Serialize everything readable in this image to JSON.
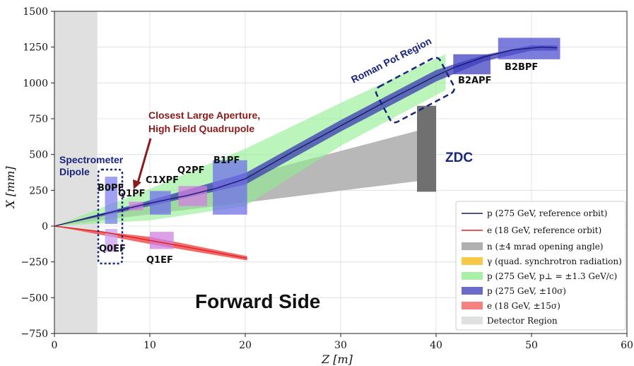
{
  "chart_data": {
    "type": "line",
    "xlabel": "Z [m]",
    "ylabel": "X [mm]",
    "xlim": [
      0,
      60
    ],
    "ylim": [
      -750,
      1500
    ],
    "x_ticks": [
      "0",
      "10",
      "20",
      "30",
      "40",
      "50",
      "60"
    ],
    "y_ticks": [
      "1500",
      "1250",
      "1000",
      "750",
      "500",
      "250",
      "0",
      "−250",
      "−500",
      "−750"
    ],
    "grid": true,
    "legend_position": "bottom-right",
    "legend": [
      "p (275 GeV, reference orbit)",
      "e (18 GeV, reference orbit)",
      "n (±4 mrad opening angle)",
      "γ (quad. synchrotron radiation)",
      "p (275 GeV, p⊥ = ±1.3 GeV/c)",
      "p (275 GeV, ±10σ)",
      "e (18 GeV, ±15σ)",
      "Detector Region"
    ],
    "series": [
      {
        "name": "p (275 GeV, reference orbit)",
        "color": "#1a1a6e",
        "x": [
          0,
          5.5,
          10,
          14,
          17,
          20,
          25,
          30,
          35,
          40,
          42,
          45,
          48,
          51,
          52.7
        ],
        "y": [
          0,
          90,
          160,
          215,
          265,
          330,
          520,
          700,
          880,
          1050,
          1110,
          1180,
          1230,
          1250,
          1245
        ]
      },
      {
        "name": "e (18 GeV, reference orbit)",
        "color": "#e02020",
        "x": [
          0,
          5,
          10,
          15,
          20.2
        ],
        "y": [
          0,
          -40,
          -100,
          -160,
          -225
        ]
      }
    ],
    "bands": {
      "neutron_cone": {
        "color": "#b0b0b0",
        "x": [
          0,
          40
        ],
        "upper": [
          0,
          700
        ],
        "lower": [
          0,
          330
        ]
      },
      "pt_acceptance": {
        "color": "#90ee90",
        "x": [
          0,
          10,
          20,
          30,
          41
        ],
        "upper": [
          0,
          260,
          540,
          860,
          1200
        ],
        "lower": [
          0,
          40,
          140,
          560,
          950
        ]
      },
      "proton_10sigma": {
        "color": "#3a3ab0",
        "x": [
          0,
          10,
          20,
          30,
          40,
          45,
          50,
          52.7
        ],
        "upper": [
          0,
          180,
          370,
          740,
          1090,
          1195,
          1262,
          1262
        ],
        "lower": [
          0,
          140,
          290,
          660,
          1010,
          1150,
          1225,
          1225
        ]
      },
      "electron_15sigma": {
        "color": "#f05050",
        "x": [
          0,
          10,
          20.2
        ],
        "upper": [
          0,
          -75,
          -210
        ],
        "lower": [
          0,
          -125,
          -240
        ]
      },
      "detector_region": {
        "color": "#e0e0e0",
        "x": [
          0,
          4.5
        ]
      }
    },
    "magnets": [
      {
        "label": "B0PF",
        "color": "#8080f0",
        "z": [
          5.3,
          6.6
        ],
        "x": [
          15,
          345
        ]
      },
      {
        "label": "Q0EF",
        "color": "#c8a0f0",
        "z": [
          5.3,
          6.6
        ],
        "x": [
          -20,
          -180
        ]
      },
      {
        "label": "Q1PF",
        "color": "#d080e0",
        "z": [
          7.8,
          9.3
        ],
        "x": [
          110,
          170
        ]
      },
      {
        "label": "C1XPF",
        "color": "#7070e8",
        "z": [
          10,
          12.2
        ],
        "x": [
          80,
          245
        ]
      },
      {
        "label": "Q2PF",
        "color": "#d080e0",
        "z": [
          13,
          16
        ],
        "x": [
          140,
          280
        ]
      },
      {
        "label": "B1PF",
        "color": "#7070e8",
        "z": [
          16.6,
          20.2
        ],
        "x": [
          80,
          460
        ]
      },
      {
        "label": "Q1EF",
        "color": "#d080e0",
        "z": [
          10,
          12.5
        ],
        "x": [
          -40,
          -160
        ]
      },
      {
        "label": "B2APF",
        "color": "#4040c0",
        "z": [
          41.8,
          45.7
        ],
        "x": [
          1060,
          1200
        ]
      },
      {
        "label": "B2BPF",
        "color": "#5050d0",
        "z": [
          46.5,
          53
        ],
        "x": [
          1165,
          1315
        ]
      },
      {
        "label": "ZDC",
        "color": "#707070",
        "z": [
          38,
          40
        ],
        "x": [
          240,
          840
        ]
      }
    ],
    "annotations": [
      {
        "text": "Spectrometer",
        "color": "#1a237e"
      },
      {
        "text": "Dipole",
        "color": "#1a237e"
      },
      {
        "text": "Closest Large Aperture,",
        "color": "#8b1a1a"
      },
      {
        "text": "High Field Quadrupole",
        "color": "#8b1a1a"
      },
      {
        "text": "Roman Pot Region",
        "color": "#1a237e"
      },
      {
        "text": "ZDC",
        "color": "#1a237e"
      },
      {
        "text": "Forward Side",
        "color": "#111111"
      }
    ]
  }
}
